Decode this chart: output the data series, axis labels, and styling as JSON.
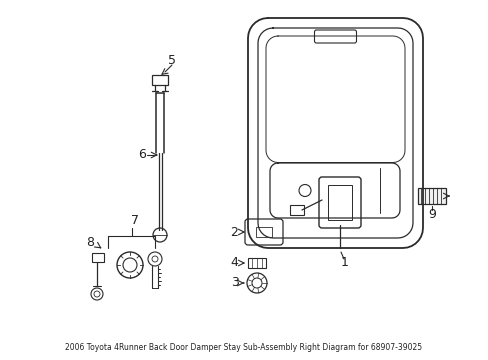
{
  "title": "2006 Toyota 4Runner Back Door Damper Stay Sub-Assembly Right Diagram for 68907-39025",
  "bg_color": "#ffffff",
  "line_color": "#2a2a2a",
  "text_color": "#222222",
  "fig_width": 4.89,
  "fig_height": 3.6,
  "dpi": 100
}
